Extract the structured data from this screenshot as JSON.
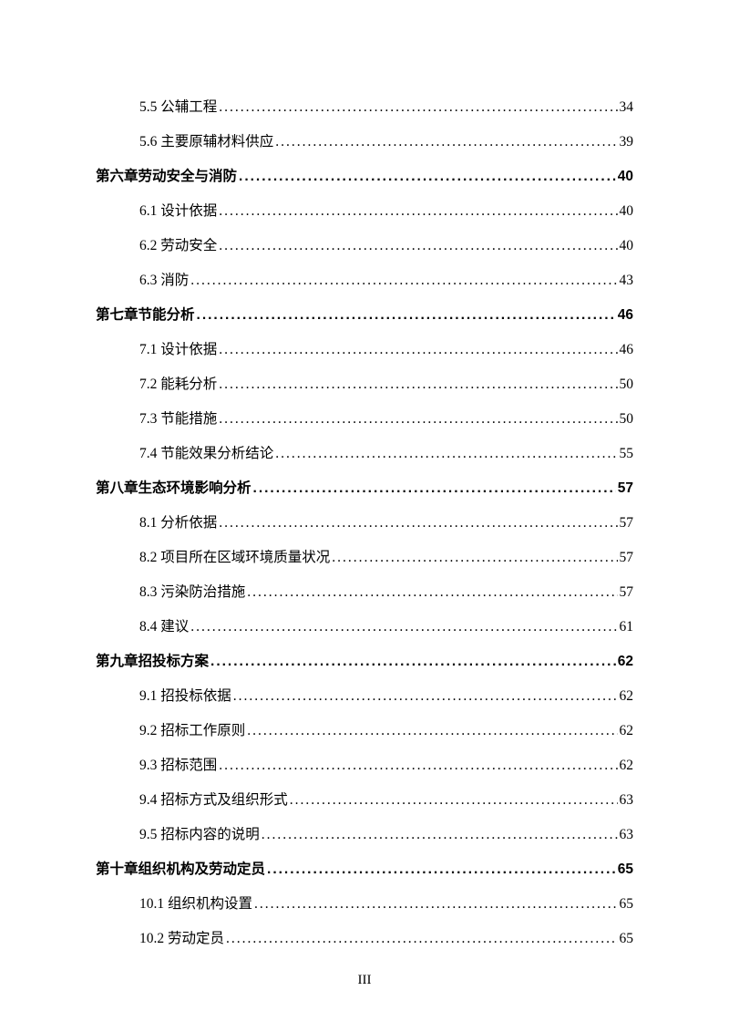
{
  "page_number_label": "III",
  "entries": [
    {
      "level": "sub",
      "label": "5.5 公辅工程",
      "page": "34"
    },
    {
      "level": "sub",
      "label": "5.6 主要原辅材料供应",
      "page": "39"
    },
    {
      "level": "chapter",
      "label": "第六章劳动安全与消防",
      "page": "40"
    },
    {
      "level": "sub",
      "label": "6.1 设计依据",
      "page": "40"
    },
    {
      "level": "sub",
      "label": "6.2 劳动安全",
      "page": "40"
    },
    {
      "level": "sub",
      "label": "6.3 消防",
      "page": "43"
    },
    {
      "level": "chapter",
      "label": "第七章节能分析",
      "page": "46"
    },
    {
      "level": "sub",
      "label": "7.1 设计依据",
      "page": "46"
    },
    {
      "level": "sub",
      "label": "7.2 能耗分析",
      "page": "50"
    },
    {
      "level": "sub",
      "label": "7.3 节能措施",
      "page": "50"
    },
    {
      "level": "sub",
      "label": "7.4 节能效果分析结论",
      "page": "55"
    },
    {
      "level": "chapter",
      "label": "第八章生态环境影响分析",
      "page": "57"
    },
    {
      "level": "sub",
      "label": "8.1 分析依据",
      "page": "57"
    },
    {
      "level": "sub",
      "label": "8.2 项目所在区域环境质量状况",
      "page": "57"
    },
    {
      "level": "sub",
      "label": "8.3 污染防治措施",
      "page": "57"
    },
    {
      "level": "sub",
      "label": "8.4 建议",
      "page": "61"
    },
    {
      "level": "chapter",
      "label": "第九章招投标方案",
      "page": "62"
    },
    {
      "level": "sub",
      "label": "9.1 招投标依据",
      "page": "62"
    },
    {
      "level": "sub",
      "label": "9.2 招标工作原则",
      "page": "62"
    },
    {
      "level": "sub",
      "label": "9.3 招标范围",
      "page": "62"
    },
    {
      "level": "sub",
      "label": "9.4 招标方式及组织形式",
      "page": "63"
    },
    {
      "level": "sub",
      "label": "9.5 招标内容的说明",
      "page": "63"
    },
    {
      "level": "chapter",
      "label": "第十章组织机构及劳动定员",
      "page": "65"
    },
    {
      "level": "sub",
      "label": "10.1 组织机构设置",
      "page": "65"
    },
    {
      "level": "sub",
      "label": "10.2 劳动定员",
      "page": "65"
    }
  ]
}
